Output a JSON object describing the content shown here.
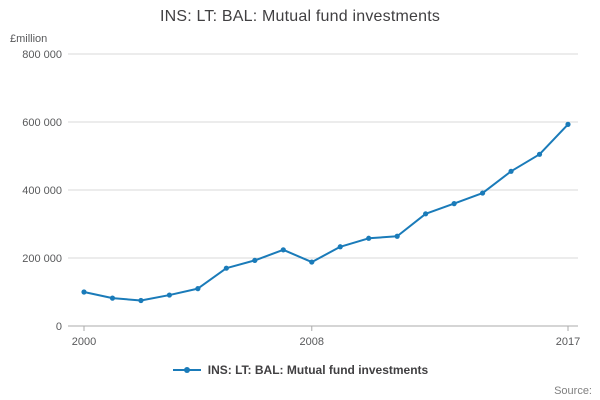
{
  "title": "INS: LT: BAL: Mutual fund investments",
  "y_axis_unit": "£million",
  "legend": {
    "label": "INS: LT: BAL: Mutual fund investments"
  },
  "source_label": "Source:",
  "colors": {
    "line": "#1a7bb9",
    "grid": "#d9d9d9",
    "axis": "#ababab",
    "tick_text": "#58595b",
    "title_text": "#414042",
    "muted_text": "#808080"
  },
  "chart_data": {
    "type": "line",
    "title": "INS: LT: BAL: Mutual fund investments",
    "xlabel": "",
    "ylabel": "£million",
    "x": [
      2000,
      2001,
      2002,
      2003,
      2004,
      2005,
      2006,
      2007,
      2008,
      2009,
      2010,
      2011,
      2012,
      2013,
      2014,
      2015,
      2016,
      2017
    ],
    "values": [
      100000,
      82000,
      75000,
      91000,
      110000,
      170000,
      193000,
      224000,
      188000,
      233000,
      258000,
      264000,
      330000,
      360000,
      391000,
      455000,
      505000,
      593000
    ],
    "ylim": [
      0,
      800000
    ],
    "yticks": [
      0,
      200000,
      400000,
      600000,
      800000
    ],
    "ytick_labels": [
      "0",
      "200 000",
      "400 000",
      "600 000",
      "800 000"
    ],
    "xticks": [
      2000,
      2008,
      2017
    ],
    "xtick_labels": [
      "2000",
      "2008",
      "2017"
    ],
    "grid": true,
    "legend_position": "bottom",
    "series_name": "INS: LT: BAL: Mutual fund investments"
  }
}
